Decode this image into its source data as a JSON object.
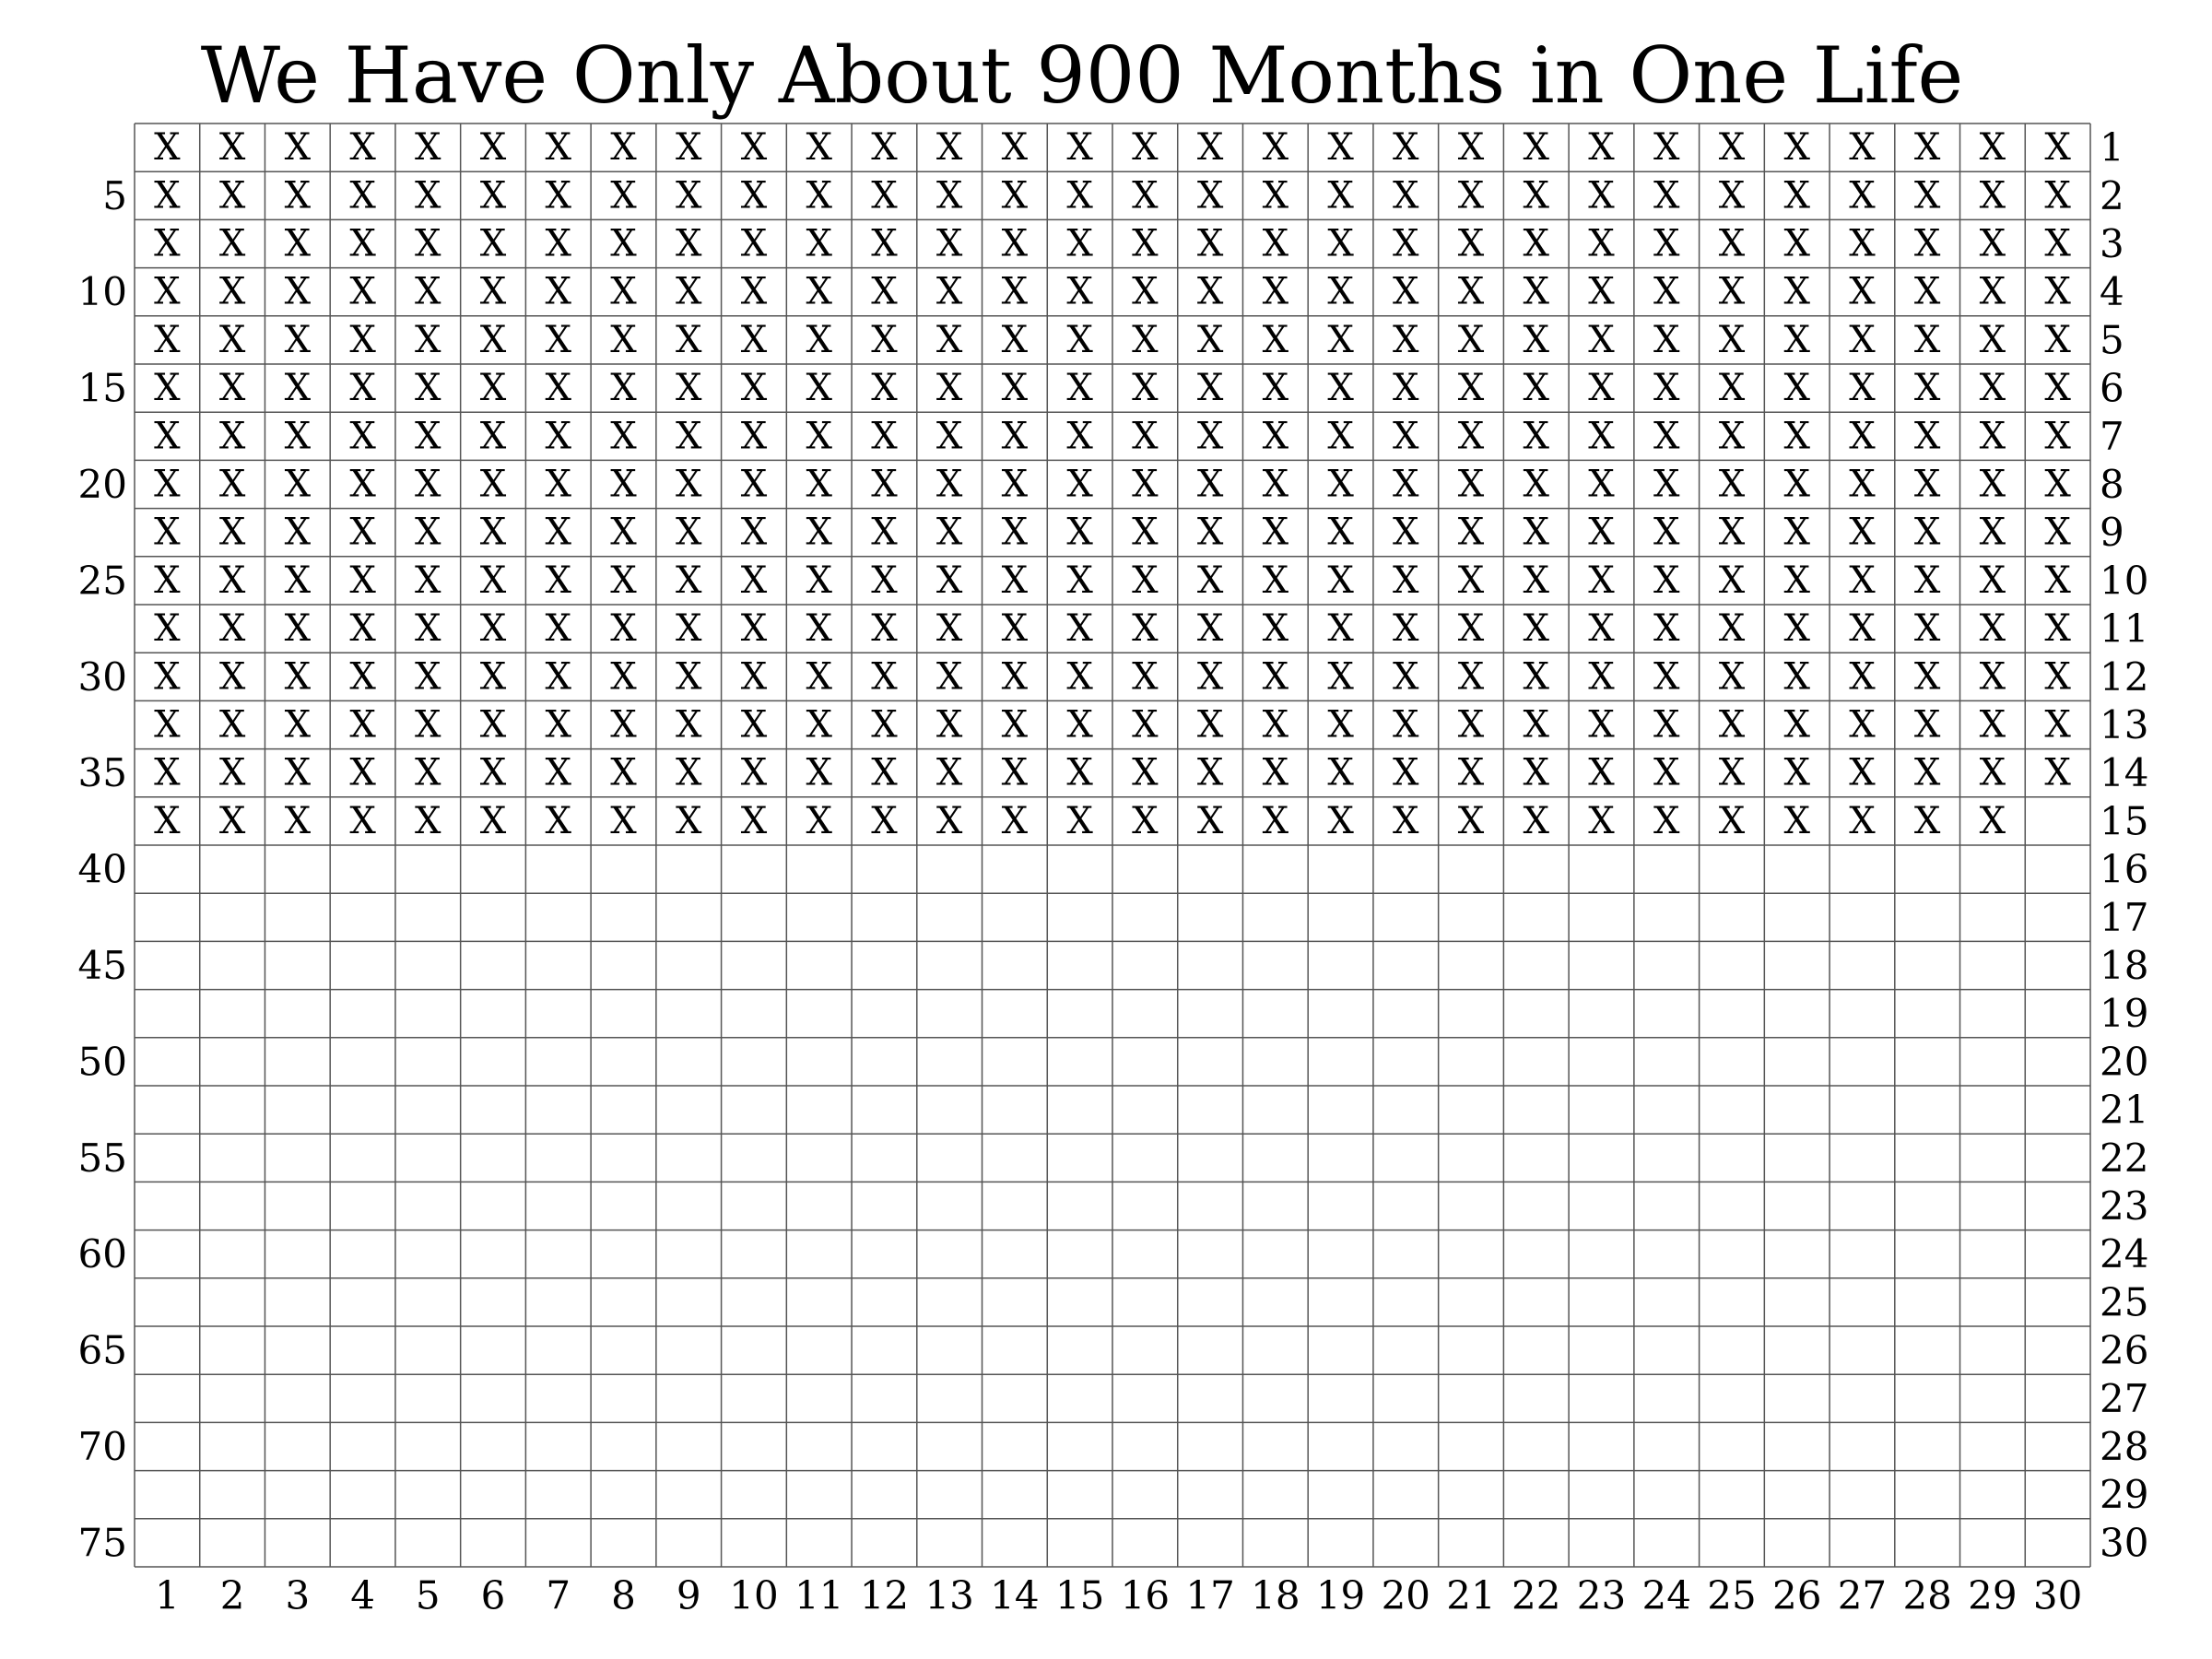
{
  "chart_data": {
    "type": "table",
    "title": "We Have Only About 900 Months in One Life",
    "columns": 30,
    "rows": 30,
    "marked_months": 449,
    "mark_symbol": "X",
    "x_tick_labels": [
      "1",
      "2",
      "3",
      "4",
      "5",
      "6",
      "7",
      "8",
      "9",
      "10",
      "11",
      "12",
      "13",
      "14",
      "15",
      "16",
      "17",
      "18",
      "19",
      "20",
      "21",
      "22",
      "23",
      "24",
      "25",
      "26",
      "27",
      "28",
      "29",
      "30"
    ],
    "right_row_labels": [
      "1",
      "2",
      "3",
      "4",
      "5",
      "6",
      "7",
      "8",
      "9",
      "10",
      "11",
      "12",
      "13",
      "14",
      "15",
      "16",
      "17",
      "18",
      "19",
      "20",
      "21",
      "22",
      "23",
      "24",
      "25",
      "26",
      "27",
      "28",
      "29",
      "30"
    ],
    "left_year_labels": [
      {
        "row": 2,
        "label": "5"
      },
      {
        "row": 4,
        "label": "10"
      },
      {
        "row": 6,
        "label": "15"
      },
      {
        "row": 8,
        "label": "20"
      },
      {
        "row": 10,
        "label": "25"
      },
      {
        "row": 12,
        "label": "30"
      },
      {
        "row": 14,
        "label": "35"
      },
      {
        "row": 16,
        "label": "40"
      },
      {
        "row": 18,
        "label": "45"
      },
      {
        "row": 20,
        "label": "50"
      },
      {
        "row": 22,
        "label": "55"
      },
      {
        "row": 24,
        "label": "60"
      },
      {
        "row": 26,
        "label": "65"
      },
      {
        "row": 28,
        "label": "70"
      },
      {
        "row": 30,
        "label": "75"
      }
    ],
    "grid_color": "#555555",
    "text_color": "#000000"
  }
}
